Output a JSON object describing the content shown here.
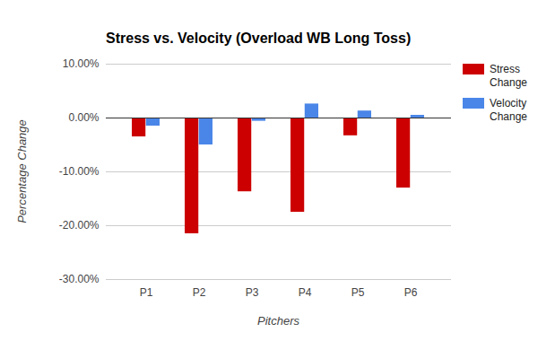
{
  "chart_data": {
    "type": "bar",
    "title": "Stress vs. Velocity (Overload WB Long Toss)",
    "x_label": "Pitchers",
    "y_label": "Percentage Change",
    "categories": [
      "P1",
      "P2",
      "P3",
      "P4",
      "P5",
      "P6"
    ],
    "series": [
      {
        "name": "Stress Change",
        "color": "#cc0000",
        "values": [
          -3.5,
          -21.5,
          -13.7,
          -17.5,
          -3.3,
          -13.0
        ]
      },
      {
        "name": "Velocity Change",
        "color": "#4a86e8",
        "values": [
          -1.5,
          -5.0,
          -0.6,
          2.6,
          1.3,
          0.5
        ]
      }
    ],
    "ylim": [
      -30,
      10
    ],
    "yticks": [
      {
        "value": -30,
        "label": "-30.00%"
      },
      {
        "value": -20,
        "label": "-20.00%"
      },
      {
        "value": -10,
        "label": "-10.00%"
      },
      {
        "value": 0,
        "label": "0.00%"
      },
      {
        "value": 10,
        "label": "10.00%"
      }
    ],
    "grid": true,
    "legend": "right"
  }
}
